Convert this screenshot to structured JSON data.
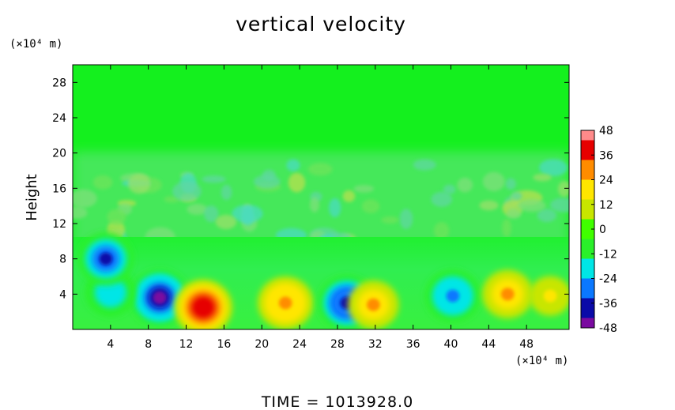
{
  "chart_data": {
    "type": "heatmap",
    "title": "vertical velocity",
    "ylabel": "Height",
    "xunit": "(×10⁴ m)",
    "yunit": "(×10⁴ m)",
    "xlim": [
      0,
      52.5
    ],
    "ylim": [
      0,
      30
    ],
    "xticks": [
      4,
      8,
      12,
      16,
      20,
      24,
      28,
      32,
      36,
      40,
      44,
      48
    ],
    "yticks": [
      4,
      8,
      12,
      16,
      20,
      24,
      28
    ],
    "colorbar": {
      "ticks": [
        48,
        36,
        24,
        12,
        0,
        -12,
        -24,
        -36,
        -48
      ],
      "range": [
        -48,
        48
      ],
      "colors": [
        "#7a0aa0",
        "#0a0aa8",
        "#0a78ff",
        "#00e6e6",
        "#2af02a",
        "#40ff00",
        "#c8e600",
        "#ffe600",
        "#ff8c00",
        "#e60000",
        "#ff8a8a"
      ]
    },
    "features": [
      {
        "x": 9.2,
        "y": 3.6,
        "value": -46
      },
      {
        "x": 13.8,
        "y": 2.5,
        "value": 42
      },
      {
        "x": 22.5,
        "y": 3.0,
        "value": 30
      },
      {
        "x": 29.0,
        "y": 3.0,
        "value": -42
      },
      {
        "x": 31.8,
        "y": 2.8,
        "value": 24
      },
      {
        "x": 4.0,
        "y": 4.2,
        "value": -22
      },
      {
        "x": 3.5,
        "y": 8.0,
        "value": -34
      },
      {
        "x": 40.2,
        "y": 3.8,
        "value": -32
      },
      {
        "x": 46.0,
        "y": 4.0,
        "value": 26
      },
      {
        "x": 50.5,
        "y": 3.8,
        "value": 18
      }
    ],
    "grid": false
  },
  "footer": {
    "time_label": "TIME  =  1013928.0"
  }
}
